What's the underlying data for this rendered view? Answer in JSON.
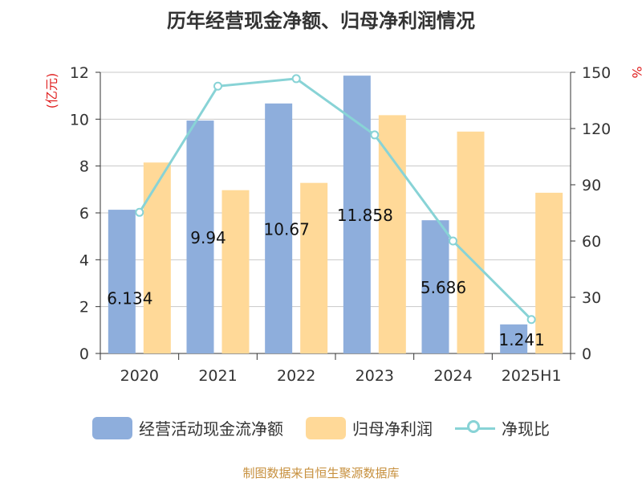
{
  "title": "历年经营现金净额、归母净利润情况",
  "source": "制图数据来自恒生聚源数据库",
  "colors": {
    "cash": "#8eaedc",
    "profit": "#ffd998",
    "ratio": "#88d3d6",
    "unit": "#e02020"
  },
  "chart_data": {
    "type": "bar",
    "categories": [
      "2020",
      "2021",
      "2022",
      "2023",
      "2024",
      "2025H1"
    ],
    "y_left": {
      "unit": "(亿元)",
      "ticks": [
        "0",
        "2",
        "4",
        "6",
        "8",
        "10",
        "12"
      ],
      "range": [
        0,
        12
      ]
    },
    "y_right": {
      "unit": "%",
      "ticks": [
        "0",
        "30",
        "60",
        "90",
        "120",
        "150"
      ],
      "range": [
        0,
        150
      ]
    },
    "series": [
      {
        "name": "经营活动现金流净额",
        "type": "bar",
        "axis": "left",
        "values": [
          6.134,
          9.94,
          10.67,
          11.858,
          5.686,
          1.241
        ],
        "labels": [
          "6.134",
          "9.94",
          "10.67",
          "11.858",
          "5.686",
          "1.241"
        ]
      },
      {
        "name": "归母净利润",
        "type": "bar",
        "axis": "left",
        "values": [
          8.15,
          6.97,
          7.28,
          10.17,
          9.47,
          6.86
        ]
      },
      {
        "name": "净现比",
        "type": "line",
        "axis": "right",
        "values": [
          75.3,
          142.6,
          146.6,
          116.6,
          60.0,
          18.1
        ]
      }
    ],
    "grid": true,
    "legend": "bottom"
  }
}
